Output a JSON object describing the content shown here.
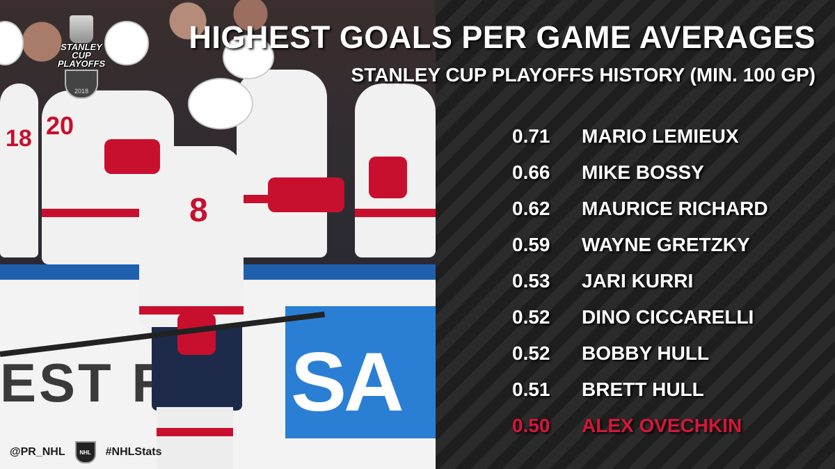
{
  "graphic": {
    "title": "HIGHEST GOALS PER GAME AVERAGES",
    "subtitle": "STANLEY CUP PLAYOFFS HISTORY (MIN. 100 GP)",
    "highlight_color": "#d6163a",
    "text_color": "#ffffff"
  },
  "logo": {
    "line1": "STANLEY CUP",
    "line2": "PLAYOFFS",
    "year": "2018"
  },
  "photo": {
    "board_text": "EST RU",
    "sap_text": "SA",
    "jersey_numbers": [
      "18",
      "20",
      "8"
    ]
  },
  "footer": {
    "handle": "@PR_NHL",
    "shield_label": "NHL",
    "hashtag": "#NHLStats"
  },
  "leaders": [
    {
      "value": "0.71",
      "name": "MARIO LEMIEUX"
    },
    {
      "value": "0.66",
      "name": "MIKE BOSSY"
    },
    {
      "value": "0.62",
      "name": "MAURICE RICHARD"
    },
    {
      "value": "0.59",
      "name": "WAYNE GRETZKY"
    },
    {
      "value": "0.53",
      "name": "JARI KURRI"
    },
    {
      "value": "0.52",
      "name": "DINO CICCARELLI"
    },
    {
      "value": "0.52",
      "name": "BOBBY HULL"
    },
    {
      "value": "0.51",
      "name": "BRETT HULL"
    },
    {
      "value": "0.50",
      "name": "ALEX OVECHKIN",
      "highlight": true
    }
  ]
}
